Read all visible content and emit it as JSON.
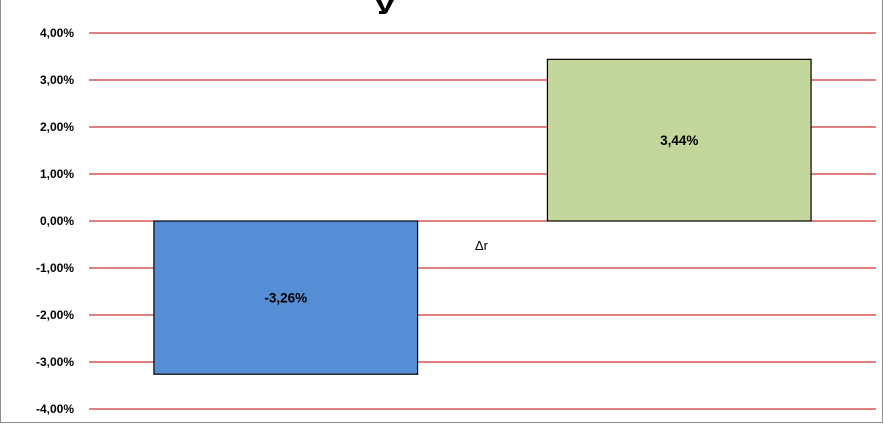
{
  "chart_data": {
    "type": "bar",
    "title": "",
    "xlabel": "",
    "ylabel": "",
    "category_axis_label": "Δr",
    "categories": [
      "",
      ""
    ],
    "values": [
      -3.26,
      3.44
    ],
    "value_labels": [
      "-3,26%",
      "3,44%"
    ],
    "bar_colors": [
      "#558ed5",
      "#c3d69b"
    ],
    "gridline_color": "#c00000",
    "ylim": [
      -4,
      4
    ],
    "ytick_values": [
      4,
      3,
      2,
      1,
      0,
      -1,
      -2,
      -3,
      -4
    ],
    "ytick_labels": [
      "4,00%",
      "3,00%",
      "2,00%",
      "1,00%",
      "0,00%",
      "-1,00%",
      "-2,00%",
      "-3,00%",
      "-4,00%"
    ],
    "grid": true,
    "legend": "none"
  }
}
